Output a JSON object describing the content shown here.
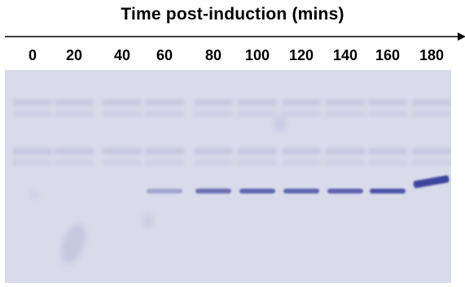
{
  "figure": {
    "title": "Time post-induction (mins)",
    "lanes": [
      "0",
      "20",
      "40",
      "60",
      "80",
      "100",
      "120",
      "140",
      "160",
      "180"
    ],
    "band_intensity": [
      0,
      0,
      0,
      0.35,
      0.7,
      0.78,
      0.78,
      0.8,
      0.9,
      1.0
    ]
  },
  "colors": {
    "gel_background": "#d9dbea",
    "band": "#3d45a0",
    "smear": "#b9bcd6"
  }
}
